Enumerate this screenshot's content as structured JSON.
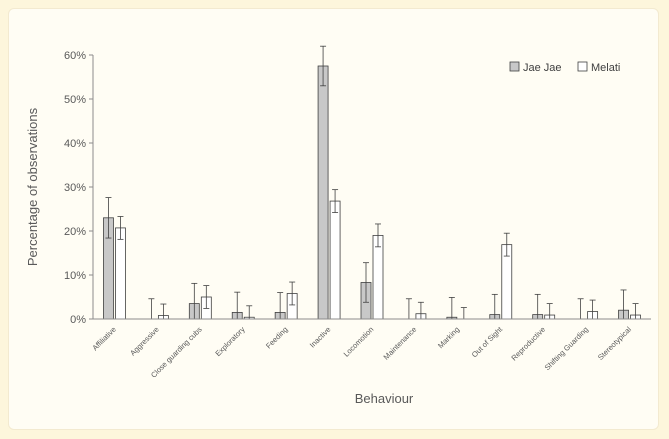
{
  "chart_data": {
    "type": "bar",
    "xlabel": "Behaviour",
    "ylabel": "Percentage of observations",
    "ylim": [
      0,
      60
    ],
    "yticks": [
      "0%",
      "10%",
      "20%",
      "30%",
      "40%",
      "50%",
      "60%"
    ],
    "grid": false,
    "legend_position": "top-right",
    "categories": [
      "Affiliative",
      "Aggressive",
      "Close guarding cubs",
      "Exploratory",
      "Feeding",
      "Inactive",
      "Locomotion",
      "Maintenance",
      "Marking",
      "Out of Sight",
      "Reproductive",
      "Shifting Guarding",
      "Stereotypical"
    ],
    "series": [
      {
        "name": "Jae Jae",
        "color": "#c8c8c8",
        "values": [
          23.0,
          0.0,
          3.5,
          1.5,
          1.5,
          57.5,
          8.3,
          0.0,
          0.4,
          1.0,
          1.0,
          0.0,
          2.0
        ],
        "errors": [
          4.6,
          4.6,
          4.6,
          4.6,
          4.5,
          4.5,
          4.5,
          4.6,
          4.5,
          4.6,
          4.6,
          4.6,
          4.6
        ]
      },
      {
        "name": "Melati",
        "color": "#ffffff",
        "values": [
          20.7,
          0.8,
          5.0,
          0.4,
          5.8,
          26.8,
          19.0,
          1.2,
          0.0,
          16.9,
          0.9,
          1.7,
          0.9
        ],
        "errors": [
          2.6,
          2.6,
          2.6,
          2.6,
          2.6,
          2.6,
          2.6,
          2.6,
          2.6,
          2.6,
          2.6,
          2.6,
          2.6
        ]
      }
    ]
  }
}
